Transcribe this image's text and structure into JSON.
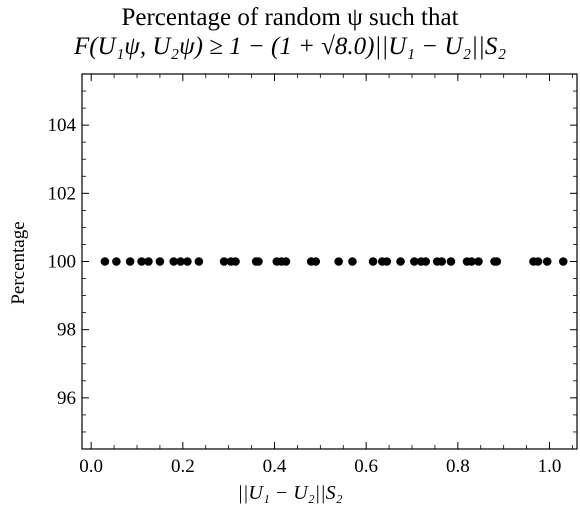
{
  "chart_data": {
    "type": "scatter",
    "title": "Percentage of random ψ such that",
    "subtitle": "F(U₁ψ, U₂ψ) ≥ 1 − (1 + √8.0)||U₁ − U₂||S₂",
    "xlabel": "||U₁ − U₂||S₂",
    "ylabel": "Percentage",
    "xlim": [
      -0.02,
      1.06
    ],
    "ylim": [
      94.5,
      105.5
    ],
    "xticks": [
      0.0,
      0.2,
      0.4,
      0.6,
      0.8,
      1.0
    ],
    "xtick_labels": [
      "0.0",
      "0.2",
      "0.4",
      "0.6",
      "0.8",
      "1.0"
    ],
    "yticks": [
      96,
      98,
      100,
      102,
      104
    ],
    "ytick_labels": [
      "96",
      "98",
      "100",
      "102",
      "104"
    ],
    "grid": false,
    "marker_color": "#000000",
    "x": [
      0.03,
      0.055,
      0.085,
      0.11,
      0.125,
      0.15,
      0.18,
      0.195,
      0.21,
      0.235,
      0.29,
      0.305,
      0.315,
      0.36,
      0.365,
      0.405,
      0.415,
      0.425,
      0.48,
      0.49,
      0.54,
      0.57,
      0.615,
      0.635,
      0.645,
      0.675,
      0.705,
      0.72,
      0.73,
      0.755,
      0.765,
      0.785,
      0.82,
      0.83,
      0.845,
      0.88,
      0.885,
      0.965,
      0.975,
      0.995,
      1.03
    ],
    "y": [
      100,
      100,
      100,
      100,
      100,
      100,
      100,
      100,
      100,
      100,
      100,
      100,
      100,
      100,
      100,
      100,
      100,
      100,
      100,
      100,
      100,
      100,
      100,
      100,
      100,
      100,
      100,
      100,
      100,
      100,
      100,
      100,
      100,
      100,
      100,
      100,
      100,
      100,
      100,
      100,
      100
    ]
  }
}
